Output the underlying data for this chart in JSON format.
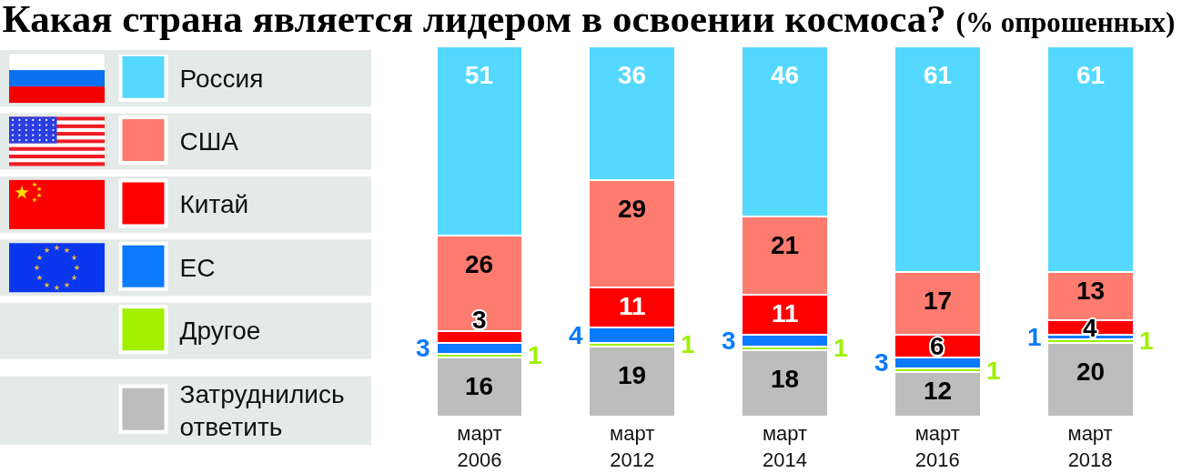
{
  "chart_data": {
    "type": "bar",
    "title": "Какая страна является лидером в освоении космоса?",
    "subtitle": "(% опрошенных)",
    "categories": [
      "март 2006",
      "март 2012",
      "март 2014",
      "март 2016",
      "март 2018"
    ],
    "stacked": true,
    "data_labels": true,
    "legend": "left",
    "tick_labels": "x",
    "series": [
      {
        "name": "Затруднились ответить",
        "color": "#bdbdbd",
        "values": [
          16,
          19,
          18,
          12,
          20
        ]
      },
      {
        "name": "Другое",
        "color": "#a0f000",
        "values": [
          1,
          1,
          1,
          1,
          1
        ]
      },
      {
        "name": "ЕС",
        "color": "#0a7afe",
        "values": [
          3,
          4,
          3,
          3,
          1
        ]
      },
      {
        "name": "Китай",
        "color": "#fe0000",
        "values": [
          3,
          11,
          11,
          6,
          4
        ]
      },
      {
        "name": "США",
        "color": "#fe7b70",
        "values": [
          26,
          29,
          21,
          17,
          13
        ]
      },
      {
        "name": "Россия",
        "color": "#55d8fe",
        "values": [
          51,
          36,
          46,
          61,
          61
        ]
      }
    ]
  }
}
